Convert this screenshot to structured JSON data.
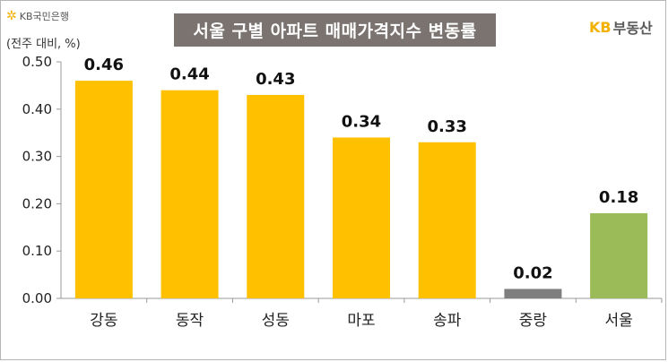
{
  "header": {
    "bank_logo_text": "KB국민은행",
    "unit_label": "(전주 대비, %)",
    "title": "서울 구별 아파트 매매가격지수 변동률",
    "brand_kb": "KB",
    "brand_rest": "부동산"
  },
  "colors": {
    "default_bar": "#ffc000",
    "low_bar": "#7f7f7f",
    "total_bar": "#9bbb59",
    "title_bg": "#7a7370",
    "brand": "#f2b100"
  },
  "chart_data": {
    "type": "bar",
    "title": "서울 구별 아파트 매매가격지수 변동률",
    "ylabel": "(전주 대비, %)",
    "categories": [
      "강동",
      "동작",
      "성동",
      "마포",
      "송파",
      "중랑",
      "서울"
    ],
    "values": [
      0.46,
      0.44,
      0.43,
      0.34,
      0.33,
      0.02,
      0.18
    ],
    "data_labels": [
      "0.46",
      "0.44",
      "0.43",
      "0.34",
      "0.33",
      "0.02",
      "0.18"
    ],
    "bar_colors": [
      "#ffc000",
      "#ffc000",
      "#ffc000",
      "#ffc000",
      "#ffc000",
      "#7f7f7f",
      "#9bbb59"
    ],
    "ylim": [
      0,
      0.5
    ],
    "yticks": [
      "0.00",
      "0.10",
      "0.20",
      "0.30",
      "0.40",
      "0.50"
    ],
    "grid": false,
    "legend": "none"
  }
}
